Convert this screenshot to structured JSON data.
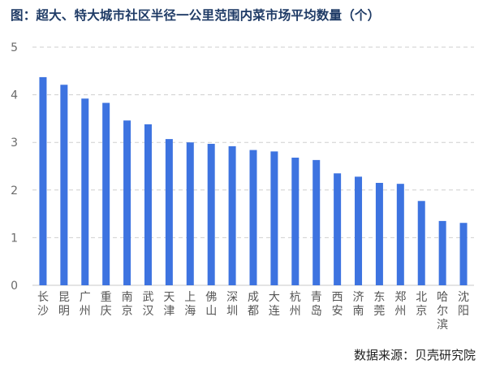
{
  "chart_data": {
    "type": "bar",
    "title": "图：超大、特大城市社区半径一公里范围内菜市场平均数量（个）",
    "source": "数据来源：贝壳研究院",
    "xlabel": "",
    "ylabel": "",
    "ylim": [
      0,
      5
    ],
    "yticks": [
      "0",
      "1",
      "2",
      "3",
      "4",
      "5"
    ],
    "grid": true,
    "bar_color": "#3d73e0",
    "categories": [
      "长沙",
      "昆明",
      "广州",
      "重庆",
      "南京",
      "武汉",
      "天津",
      "上海",
      "佛山",
      "深圳",
      "成都",
      "大连",
      "杭州",
      "青岛",
      "西安",
      "济南",
      "东莞",
      "郑州",
      "北京",
      "哈尔滨",
      "沈阳"
    ],
    "values": [
      4.37,
      4.21,
      3.92,
      3.83,
      3.46,
      3.38,
      3.07,
      3.0,
      2.97,
      2.92,
      2.84,
      2.81,
      2.68,
      2.63,
      2.35,
      2.28,
      2.15,
      2.13,
      1.77,
      1.35,
      1.31
    ]
  }
}
